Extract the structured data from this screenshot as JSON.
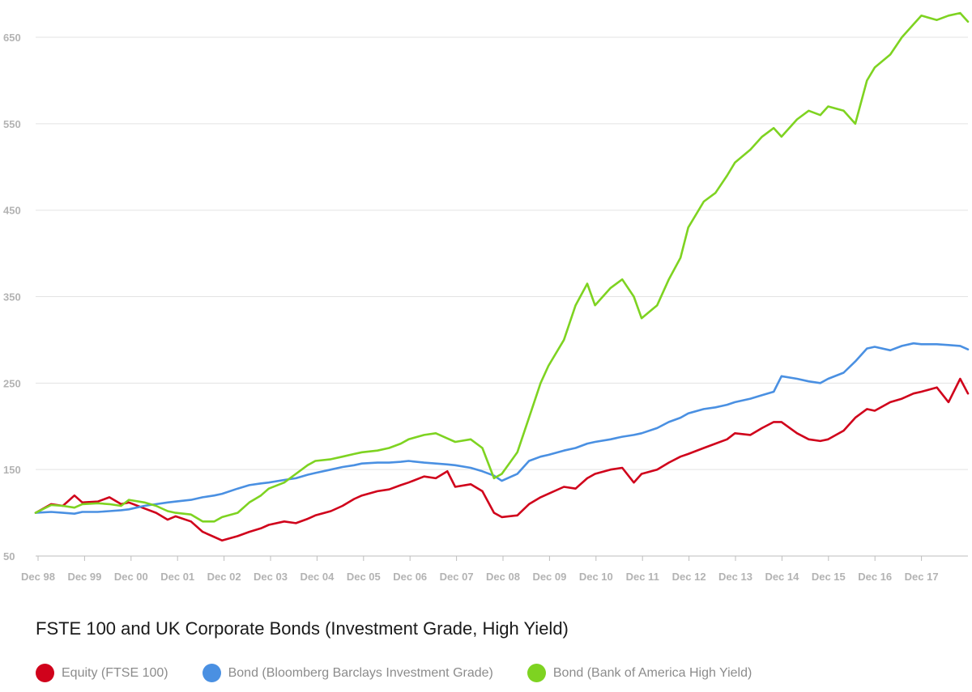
{
  "chart_data": {
    "type": "line",
    "title": "FSTE 100 and UK Corporate Bonds (Investment Grade, High Yield)",
    "xlabel": "",
    "ylabel": "",
    "x_ticks": [
      "Dec 98",
      "Dec 99",
      "Dec 00",
      "Dec 01",
      "Dec 02",
      "Dec 03",
      "Dec 04",
      "Dec 05",
      "Dec 06",
      "Dec 07",
      "Dec 08",
      "Dec 09",
      "Dec 10",
      "Dec 11",
      "Dec 12",
      "Dec 13",
      "Dec 14",
      "Dec 15",
      "Dec 16",
      "Dec 17"
    ],
    "y_ticks": [
      50,
      150,
      250,
      350,
      450,
      550,
      650
    ],
    "xlim": [
      1998.917,
      2018.917
    ],
    "ylim": [
      50,
      680
    ],
    "grid": true,
    "legend_position": "bottom-left",
    "series": [
      {
        "name": "Equity (FTSE 100)",
        "color": "#d0021b",
        "x": [
          1998.917,
          1999.25,
          1999.5,
          1999.75,
          1999.917,
          2000.25,
          2000.5,
          2000.75,
          2000.917,
          2001.25,
          2001.5,
          2001.75,
          2001.917,
          2002.25,
          2002.5,
          2002.75,
          2002.917,
          2003.25,
          2003.5,
          2003.75,
          2003.917,
          2004.25,
          2004.5,
          2004.75,
          2004.917,
          2005.25,
          2005.5,
          2005.75,
          2005.917,
          2006.25,
          2006.5,
          2006.75,
          2006.917,
          2007.25,
          2007.5,
          2007.75,
          2007.917,
          2008.25,
          2008.5,
          2008.75,
          2008.917,
          2009.25,
          2009.5,
          2009.75,
          2009.917,
          2010.25,
          2010.5,
          2010.75,
          2010.917,
          2011.25,
          2011.5,
          2011.75,
          2011.917,
          2012.25,
          2012.5,
          2012.75,
          2012.917,
          2013.25,
          2013.5,
          2013.75,
          2013.917,
          2014.25,
          2014.5,
          2014.75,
          2014.917,
          2015.25,
          2015.5,
          2015.75,
          2015.917,
          2016.25,
          2016.5,
          2016.75,
          2016.917,
          2017.25,
          2017.5,
          2017.75,
          2017.917,
          2018.25,
          2018.5,
          2018.75,
          2018.917
        ],
        "values": [
          100,
          110,
          108,
          120,
          112,
          113,
          118,
          110,
          112,
          105,
          100,
          92,
          96,
          90,
          78,
          72,
          68,
          73,
          78,
          82,
          86,
          90,
          88,
          93,
          97,
          102,
          108,
          116,
          120,
          125,
          127,
          132,
          135,
          142,
          140,
          148,
          130,
          133,
          125,
          100,
          95,
          97,
          110,
          118,
          122,
          130,
          128,
          140,
          145,
          150,
          152,
          135,
          145,
          150,
          158,
          165,
          168,
          175,
          180,
          185,
          192,
          190,
          198,
          205,
          205,
          192,
          185,
          183,
          185,
          195,
          210,
          220,
          218,
          228,
          232,
          238,
          240,
          245,
          228,
          255,
          238
        ]
      },
      {
        "name": "Bond (Bloomberg Barclays Investment Grade)",
        "color": "#4a90e2",
        "x": [
          1998.917,
          1999.25,
          1999.5,
          1999.75,
          1999.917,
          2000.25,
          2000.5,
          2000.75,
          2000.917,
          2001.25,
          2001.5,
          2001.75,
          2001.917,
          2002.25,
          2002.5,
          2002.75,
          2002.917,
          2003.25,
          2003.5,
          2003.75,
          2003.917,
          2004.25,
          2004.5,
          2004.75,
          2004.917,
          2005.25,
          2005.5,
          2005.75,
          2005.917,
          2006.25,
          2006.5,
          2006.75,
          2006.917,
          2007.25,
          2007.5,
          2007.75,
          2007.917,
          2008.25,
          2008.5,
          2008.75,
          2008.917,
          2009.25,
          2009.5,
          2009.75,
          2009.917,
          2010.25,
          2010.5,
          2010.75,
          2010.917,
          2011.25,
          2011.5,
          2011.75,
          2011.917,
          2012.25,
          2012.5,
          2012.75,
          2012.917,
          2013.25,
          2013.5,
          2013.75,
          2013.917,
          2014.25,
          2014.5,
          2014.75,
          2014.917,
          2015.25,
          2015.5,
          2015.75,
          2015.917,
          2016.25,
          2016.5,
          2016.75,
          2016.917,
          2017.25,
          2017.5,
          2017.75,
          2017.917,
          2018.25,
          2018.5,
          2018.75,
          2018.917
        ],
        "values": [
          100,
          101,
          100,
          99,
          101,
          101,
          102,
          103,
          104,
          108,
          110,
          112,
          113,
          115,
          118,
          120,
          122,
          128,
          132,
          134,
          135,
          138,
          140,
          144,
          146,
          150,
          153,
          155,
          157,
          158,
          158,
          159,
          160,
          158,
          157,
          156,
          155,
          152,
          148,
          143,
          137,
          145,
          160,
          165,
          167,
          172,
          175,
          180,
          182,
          185,
          188,
          190,
          192,
          198,
          205,
          210,
          215,
          220,
          222,
          225,
          228,
          232,
          236,
          240,
          258,
          255,
          252,
          250,
          255,
          262,
          275,
          290,
          292,
          288,
          293,
          296,
          295,
          295,
          294,
          293,
          289
        ]
      },
      {
        "name": "Bond (Bank of America High Yield)",
        "color": "#7ed321",
        "x": [
          1998.917,
          1999.25,
          1999.5,
          1999.75,
          1999.917,
          2000.25,
          2000.5,
          2000.75,
          2000.917,
          2001.25,
          2001.5,
          2001.75,
          2001.917,
          2002.25,
          2002.5,
          2002.75,
          2002.917,
          2003.25,
          2003.5,
          2003.75,
          2003.917,
          2004.25,
          2004.5,
          2004.75,
          2004.917,
          2005.25,
          2005.5,
          2005.75,
          2005.917,
          2006.25,
          2006.5,
          2006.75,
          2006.917,
          2007.25,
          2007.5,
          2007.75,
          2007.917,
          2008.25,
          2008.5,
          2008.75,
          2008.917,
          2009.25,
          2009.5,
          2009.75,
          2009.917,
          2010.25,
          2010.5,
          2010.75,
          2010.917,
          2011.25,
          2011.5,
          2011.75,
          2011.917,
          2012.25,
          2012.5,
          2012.75,
          2012.917,
          2013.25,
          2013.5,
          2013.75,
          2013.917,
          2014.25,
          2014.5,
          2014.75,
          2014.917,
          2015.25,
          2015.5,
          2015.75,
          2015.917,
          2016.25,
          2016.5,
          2016.75,
          2016.917,
          2017.25,
          2017.5,
          2017.75,
          2017.917,
          2018.25,
          2018.5,
          2018.75,
          2018.917
        ],
        "values": [
          100,
          109,
          108,
          106,
          110,
          111,
          110,
          108,
          115,
          112,
          108,
          102,
          100,
          98,
          90,
          90,
          95,
          100,
          112,
          120,
          128,
          135,
          145,
          155,
          160,
          162,
          165,
          168,
          170,
          172,
          175,
          180,
          185,
          190,
          192,
          186,
          182,
          185,
          175,
          140,
          145,
          170,
          210,
          250,
          270,
          300,
          340,
          365,
          340,
          360,
          370,
          350,
          325,
          340,
          370,
          395,
          430,
          460,
          470,
          490,
          505,
          520,
          535,
          545,
          535,
          555,
          565,
          560,
          570,
          565,
          550,
          600,
          615,
          630,
          650,
          665,
          675,
          670,
          675,
          678,
          668
        ]
      }
    ]
  }
}
